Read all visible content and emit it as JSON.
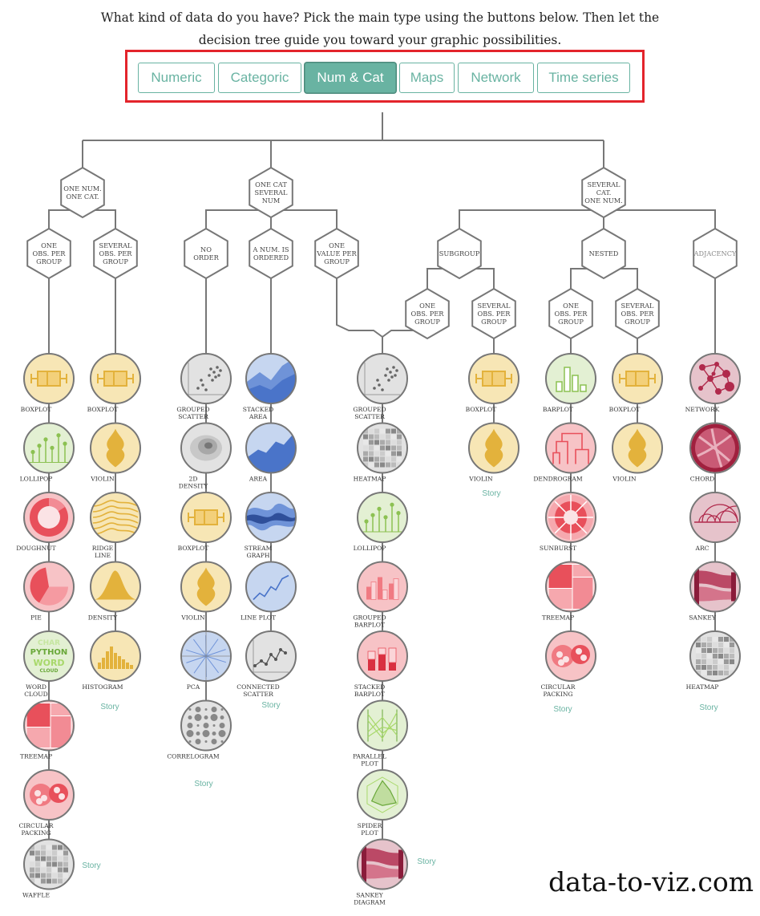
{
  "intro": {
    "line1": "What kind of data do you have? Pick the main type using the buttons below. Then let the",
    "line2": "decision tree guide you toward your graphic possibilities."
  },
  "tabs": [
    {
      "label": "Numeric",
      "active": false
    },
    {
      "label": "Categoric",
      "active": false
    },
    {
      "label": "Num & Cat",
      "active": true
    },
    {
      "label": "Maps",
      "active": false
    },
    {
      "label": "Network",
      "active": false
    },
    {
      "label": "Time series",
      "active": false
    }
  ],
  "colors": {
    "accent": "#69b3a2",
    "tab_panel_border": "#e3242b",
    "line": "#777777",
    "yellow_fill": "#f7e6b5",
    "yellow_mark": "#e3b23c",
    "green_fill": "#e3f0d3",
    "green_mark": "#8cc152",
    "red_fill": "#f7c3c6",
    "red_mark": "#e8505b",
    "blue_fill": "#c6d6f0",
    "blue_mark": "#4a74c9",
    "grey_fill": "#e2e2e2",
    "grey_mark": "#8a8a8a",
    "pink_fill": "#e6c3cb",
    "pink_mark": "#b02a4c"
  },
  "tree": {
    "nodes": [
      {
        "label": "ONE NUM. ONE CAT."
      },
      {
        "label": "ONE CAT SEVERAL NUM"
      },
      {
        "label": "SEVERAL CAT. ONE NUM."
      },
      {
        "label": "ONE OBS. PER GROUP"
      },
      {
        "label": "SEVERAL OBS. PER GROUP"
      },
      {
        "label": "NO ORDER"
      },
      {
        "label": "A NUM. IS ORDERED"
      },
      {
        "label": "ONE VALUE PER GROUP"
      },
      {
        "label": "SUBGROUP"
      },
      {
        "label": "NESTED"
      },
      {
        "label": "ADJACENCY"
      },
      {
        "label": "ONE OBS. PER GROUP"
      },
      {
        "label": "SEVERAL OBS. PER GROUP"
      },
      {
        "label": "ONE OBS. PER GROUP"
      },
      {
        "label": "SEVERAL OBS. PER GROUP"
      }
    ],
    "columns": [
      {
        "story": "Story",
        "charts": [
          {
            "label": "BOXPLOT",
            "icon": "boxplot-icon"
          },
          {
            "label": "LOLLIPOP",
            "icon": "lollipop-icon"
          },
          {
            "label": "DOUGHNUT",
            "icon": "doughnut-icon"
          },
          {
            "label": "PIE",
            "icon": "pie-icon"
          },
          {
            "label": "WORD CLOUD",
            "icon": "wordcloud-icon"
          },
          {
            "label": "TREEMAP",
            "icon": "treemap-icon"
          },
          {
            "label": "CIRCULAR PACKING",
            "icon": "circular-packing-icon"
          },
          {
            "label": "WAFFLE",
            "icon": "waffle-icon"
          }
        ]
      },
      {
        "story": "Story",
        "charts": [
          {
            "label": "BOXPLOT",
            "icon": "boxplot-icon"
          },
          {
            "label": "VIOLIN",
            "icon": "violin-icon"
          },
          {
            "label": "RIDGE LINE",
            "icon": "ridgeline-icon"
          },
          {
            "label": "DENSITY",
            "icon": "density-icon"
          },
          {
            "label": "HISTOGRAM",
            "icon": "histogram-icon"
          }
        ]
      },
      {
        "story": "Story",
        "charts": [
          {
            "label": "GROUPED SCATTER",
            "icon": "scatter-icon"
          },
          {
            "label": "2D DENSITY",
            "icon": "density-2d-icon"
          },
          {
            "label": "BOXPLOT",
            "icon": "boxplot-icon"
          },
          {
            "label": "VIOLIN",
            "icon": "violin-icon"
          },
          {
            "label": "PCA",
            "icon": "pca-icon"
          },
          {
            "label": "CORRELOGRAM",
            "icon": "correlogram-icon"
          }
        ]
      },
      {
        "story": "Story",
        "charts": [
          {
            "label": "STACKED AREA",
            "icon": "stacked-area-icon"
          },
          {
            "label": "AREA",
            "icon": "area-icon"
          },
          {
            "label": "STREAM GRAPH",
            "icon": "streamgraph-icon"
          },
          {
            "label": "LINE PLOT",
            "icon": "lineplot-icon"
          },
          {
            "label": "CONNECTED SCATTER",
            "icon": "connected-scatter-icon"
          }
        ]
      },
      {
        "story": "Story",
        "charts": [
          {
            "label": "GROUPED SCATTER",
            "icon": "scatter-icon"
          },
          {
            "label": "HEATMAP",
            "icon": "heatmap-icon"
          },
          {
            "label": "LOLLIPOP",
            "icon": "lollipop-icon"
          },
          {
            "label": "GROUPED BARPLOT",
            "icon": "grouped-barplot-icon"
          },
          {
            "label": "STACKED BARPLOT",
            "icon": "stacked-barplot-icon"
          },
          {
            "label": "PARALLEL PLOT",
            "icon": "parallel-plot-icon"
          },
          {
            "label": "SPIDER PLOT",
            "icon": "spider-plot-icon"
          },
          {
            "label": "SANKEY DIAGRAM",
            "icon": "sankey-icon"
          }
        ]
      },
      {
        "story": "Story",
        "charts": [
          {
            "label": "BOXPLOT",
            "icon": "boxplot-icon"
          },
          {
            "label": "VIOLIN",
            "icon": "violin-icon"
          }
        ]
      },
      {
        "story": "Story",
        "charts": [
          {
            "label": "BARPLOT",
            "icon": "barplot-icon"
          },
          {
            "label": "DENDROGRAM",
            "icon": "dendrogram-icon"
          },
          {
            "label": "SUNBURST",
            "icon": "sunburst-icon"
          },
          {
            "label": "TREEMAP",
            "icon": "treemap-icon"
          },
          {
            "label": "CIRCULAR PACKING",
            "icon": "circular-packing-icon"
          }
        ]
      },
      {
        "story": "",
        "charts": [
          {
            "label": "BOXPLOT",
            "icon": "boxplot-icon"
          },
          {
            "label": "VIOLIN",
            "icon": "violin-icon"
          }
        ]
      },
      {
        "story": "Story",
        "charts": [
          {
            "label": "NETWORK",
            "icon": "network-icon"
          },
          {
            "label": "CHORD",
            "icon": "chord-icon"
          },
          {
            "label": "ARC",
            "icon": "arc-icon"
          },
          {
            "label": "SANKEY",
            "icon": "sankey-icon"
          },
          {
            "label": "HEATMAP",
            "icon": "heatmap-icon"
          }
        ]
      }
    ]
  },
  "watermark": "data-to-viz.com"
}
